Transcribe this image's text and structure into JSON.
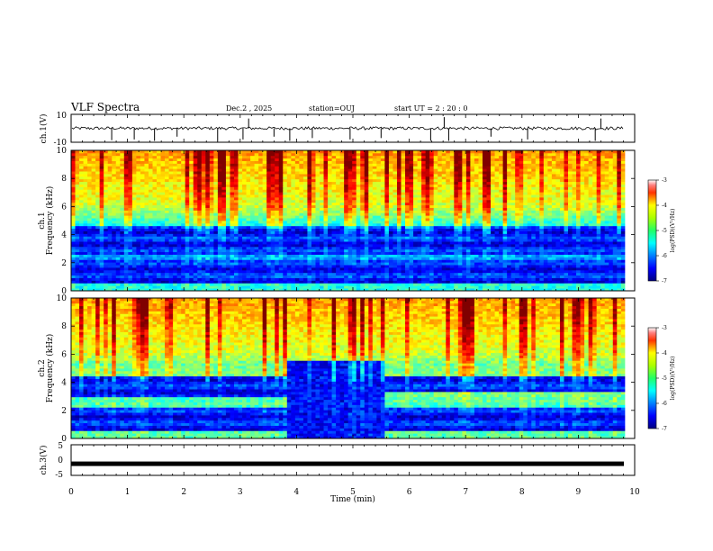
{
  "header": {
    "title": "VLF Spectra",
    "date": "Dec.2  , 2025",
    "station": "station=OUJ",
    "start": "start  UT  =   2  : 20 : 0"
  },
  "chart_data": [
    {
      "id": "ch1-waveform",
      "type": "line",
      "ylabel": "ch.1(V)",
      "ylim": [
        -10,
        10
      ],
      "yticks": [
        "10",
        "-10"
      ],
      "xlim": [
        0,
        10
      ],
      "baseline": 0,
      "spikes": [
        {
          "t": 0.72,
          "v": -8.5
        },
        {
          "t": 1.12,
          "v": -8
        },
        {
          "t": 1.48,
          "v": -9
        },
        {
          "t": 1.88,
          "v": -6
        },
        {
          "t": 2.6,
          "v": -9
        },
        {
          "t": 3.05,
          "v": -8
        },
        {
          "t": 3.15,
          "v": 7
        },
        {
          "t": 3.6,
          "v": -6
        },
        {
          "t": 3.88,
          "v": -9
        },
        {
          "t": 4.28,
          "v": -7
        },
        {
          "t": 4.95,
          "v": -8
        },
        {
          "t": 5.5,
          "v": -7
        },
        {
          "t": 6.38,
          "v": -9
        },
        {
          "t": 6.62,
          "v": 8
        },
        {
          "t": 6.7,
          "v": -9
        },
        {
          "t": 7.45,
          "v": -6
        },
        {
          "t": 8.1,
          "v": -8
        },
        {
          "t": 9.3,
          "v": -9
        },
        {
          "t": 9.4,
          "v": 7
        }
      ]
    },
    {
      "id": "ch1-spectrogram",
      "type": "heatmap",
      "ylabel": "ch.1\nFrequency  (kHz)",
      "ylim": [
        0,
        10
      ],
      "yticks": [
        "0",
        "2",
        "4",
        "6",
        "8",
        "10"
      ],
      "xlim": [
        0,
        9.83
      ],
      "variant": "ch1"
    },
    {
      "id": "ch2-spectrogram",
      "type": "heatmap",
      "ylabel": "ch.2\nFrequency  (kHz)",
      "ylim": [
        0,
        10
      ],
      "yticks": [
        "0",
        "2",
        "4",
        "6",
        "8",
        "10"
      ],
      "xlim": [
        0,
        9.83
      ],
      "variant": "ch2",
      "dark_band_intervals": [
        [
          3.8,
          5.55
        ]
      ]
    },
    {
      "id": "ch3-waveform",
      "type": "line",
      "ylabel": "ch.3(V)",
      "ylim": [
        -5,
        5
      ],
      "yticks": [
        "5",
        "0",
        "-5"
      ],
      "xlim": [
        0,
        10
      ],
      "constant_value": -1.2
    }
  ],
  "xaxis": {
    "label": "Time  (min)",
    "ticks": [
      "0",
      "1",
      "2",
      "3",
      "4",
      "5",
      "6",
      "7",
      "8",
      "9",
      "10"
    ],
    "range": [
      0,
      10
    ]
  },
  "colorbar": {
    "label": "log(PSD)(V²/Hz)",
    "range": [
      -7,
      -3
    ],
    "ticks": [
      "-3",
      "-4",
      "-5",
      "-6",
      "-7"
    ]
  }
}
